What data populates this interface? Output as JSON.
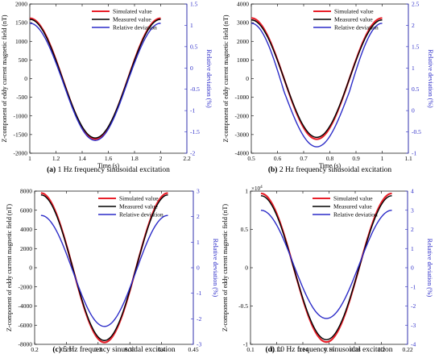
{
  "chart_data": [
    {
      "type": "line",
      "panel": "a",
      "caption_label": "(a)",
      "caption_text": "1 Hz frequency sinusoidal excitation",
      "xlabel": "Time (s)",
      "ylabel": "Z-component of eddy current magnetic field (nT)",
      "y2label": "Relative deviation (%)",
      "xlim": [
        1,
        2.2
      ],
      "ylim": [
        -2000,
        2000
      ],
      "y2lim": [
        -2,
        1.5
      ],
      "xticks": [
        "1",
        "1.2",
        "1.4",
        "1.6",
        "1.8",
        "2",
        "2.2"
      ],
      "yticks": [
        "-2000",
        "-1500",
        "-1000",
        "-500",
        "0",
        "500",
        "1000",
        "1500",
        "2000"
      ],
      "y2ticks": [
        "-2",
        "-1.5",
        "-1",
        "-0.5",
        "0",
        "0.5",
        "1",
        "1.5"
      ],
      "legend": "top-right",
      "series": [
        {
          "name": "Simulated value",
          "axis": "left",
          "color": "#e8202a",
          "x": [
            1.0,
            1.25,
            1.5,
            1.75,
            2.0
          ],
          "y": [
            1620,
            0,
            -1620,
            0,
            1620
          ]
        },
        {
          "name": "Measured value",
          "axis": "left",
          "color": "#000000",
          "x": [
            1.0,
            1.25,
            1.5,
            1.75,
            2.0
          ],
          "y": [
            1590,
            0,
            -1590,
            0,
            1590
          ]
        },
        {
          "name": "Relative deviation",
          "axis": "right",
          "color": "#2c2cc8",
          "x": [
            1.0,
            1.25,
            1.5,
            1.75,
            2.0
          ],
          "y": [
            1.05,
            -0.3,
            -1.7,
            -0.3,
            1.05
          ]
        }
      ]
    },
    {
      "type": "line",
      "panel": "b",
      "caption_label": "(b)",
      "caption_text": "2 Hz frequency sinusoidal excitation",
      "xlabel": "Time (s)",
      "ylabel": "Z-component of eddy current magnetic field (nT)",
      "y2label": "Relative deviation (%)",
      "xlim": [
        0.5,
        1.1
      ],
      "ylim": [
        -4000,
        4000
      ],
      "y2lim": [
        -1,
        2.5
      ],
      "xticks": [
        "0.5",
        "0.6",
        "0.7",
        "0.8",
        "0.9",
        "1",
        "1.1"
      ],
      "yticks": [
        "-4000",
        "-3000",
        "-2000",
        "-1000",
        "0",
        "1000",
        "2000",
        "3000",
        "4000"
      ],
      "y2ticks": [
        "-1",
        "-0.5",
        "0",
        "0.5",
        "1",
        "1.5",
        "2",
        "2.5"
      ],
      "legend": "top-right",
      "series": [
        {
          "name": "Simulated value",
          "axis": "left",
          "color": "#e8202a",
          "x": [
            0.5,
            0.625,
            0.75,
            0.875,
            1.0
          ],
          "y": [
            3250,
            0,
            -3250,
            0,
            3250
          ]
        },
        {
          "name": "Measured value",
          "axis": "left",
          "color": "#000000",
          "x": [
            0.5,
            0.625,
            0.75,
            0.875,
            1.0
          ],
          "y": [
            3150,
            0,
            -3150,
            0,
            3150
          ]
        },
        {
          "name": "Relative deviation",
          "axis": "right",
          "color": "#2c2cc8",
          "x": [
            0.5,
            0.625,
            0.75,
            0.875,
            1.0
          ],
          "y": [
            2.05,
            0.45,
            -0.85,
            0.45,
            2.05
          ]
        }
      ]
    },
    {
      "type": "line",
      "panel": "c",
      "caption_label": "(c)",
      "caption_text": "5 Hz frequency sinusoidal excitation",
      "xlabel": "Time (s)",
      "ylabel": "Z-component of eddy current magnetic field (nT)",
      "y2label": "Relative deviation (%)",
      "xlim": [
        0.2,
        0.45
      ],
      "ylim": [
        -8000,
        8000
      ],
      "y2lim": [
        -3,
        3
      ],
      "xticks": [
        "0.2",
        "0.25",
        "0.3",
        "0.35",
        "0.4",
        "0.45"
      ],
      "yticks": [
        "-8000",
        "-6000",
        "-4000",
        "-2000",
        "0",
        "2000",
        "4000",
        "6000",
        "8000"
      ],
      "y2ticks": [
        "-3",
        "-2",
        "-1",
        "0",
        "1",
        "2",
        "3"
      ],
      "legend": "top-right",
      "series": [
        {
          "name": "Simulated value",
          "axis": "left",
          "color": "#e8202a",
          "x": [
            0.21,
            0.26,
            0.31,
            0.36,
            0.41
          ],
          "y": [
            7800,
            0,
            -7800,
            0,
            7800
          ]
        },
        {
          "name": "Measured value",
          "axis": "left",
          "color": "#000000",
          "x": [
            0.21,
            0.26,
            0.31,
            0.36,
            0.41
          ],
          "y": [
            7600,
            0,
            -7600,
            0,
            7600
          ]
        },
        {
          "name": "Relative deviation",
          "axis": "right",
          "color": "#2c2cc8",
          "x": [
            0.21,
            0.26,
            0.31,
            0.36,
            0.41
          ],
          "y": [
            2.05,
            -0.12,
            -2.3,
            -0.12,
            2.05
          ]
        }
      ]
    },
    {
      "type": "line",
      "panel": "d",
      "caption_label": "(d)",
      "caption_text": "10 Hz frequency sinusoidal excitation",
      "xlabel": "Time (s)",
      "ylabel": "Z-component of eddy current magnetic field (nT)",
      "y2label": "Relative deviation (%)",
      "y_multiplier": "×10",
      "y_multiplier_exp": "4",
      "xlim": [
        0.1,
        0.22
      ],
      "ylim": [
        -1,
        1
      ],
      "y2lim": [
        -4,
        4
      ],
      "xticks": [
        "0.1",
        "0.12",
        "0.14",
        "0.16",
        "0.18",
        "0.2",
        "0.22"
      ],
      "yticks": [
        "-1",
        "-0.5",
        "0",
        "0.5",
        "1"
      ],
      "y2ticks": [
        "-4",
        "-3",
        "-2",
        "-1",
        "0",
        "1",
        "2",
        "3",
        "4"
      ],
      "legend": "top-right",
      "series": [
        {
          "name": "Simulated value",
          "axis": "left",
          "color": "#e8202a",
          "x": [
            0.108,
            0.133,
            0.158,
            0.183,
            0.208
          ],
          "y": [
            0.97,
            0,
            -0.97,
            0,
            0.97
          ]
        },
        {
          "name": "Measured value",
          "axis": "left",
          "color": "#000000",
          "x": [
            0.108,
            0.133,
            0.158,
            0.183,
            0.208
          ],
          "y": [
            0.94,
            0,
            -0.94,
            0,
            0.94
          ]
        },
        {
          "name": "Relative deviation",
          "axis": "right",
          "color": "#2c2cc8",
          "x": [
            0.108,
            0.133,
            0.158,
            0.183,
            0.208
          ],
          "y": [
            3.0,
            0.15,
            -2.65,
            0.15,
            3.0
          ]
        }
      ]
    }
  ]
}
